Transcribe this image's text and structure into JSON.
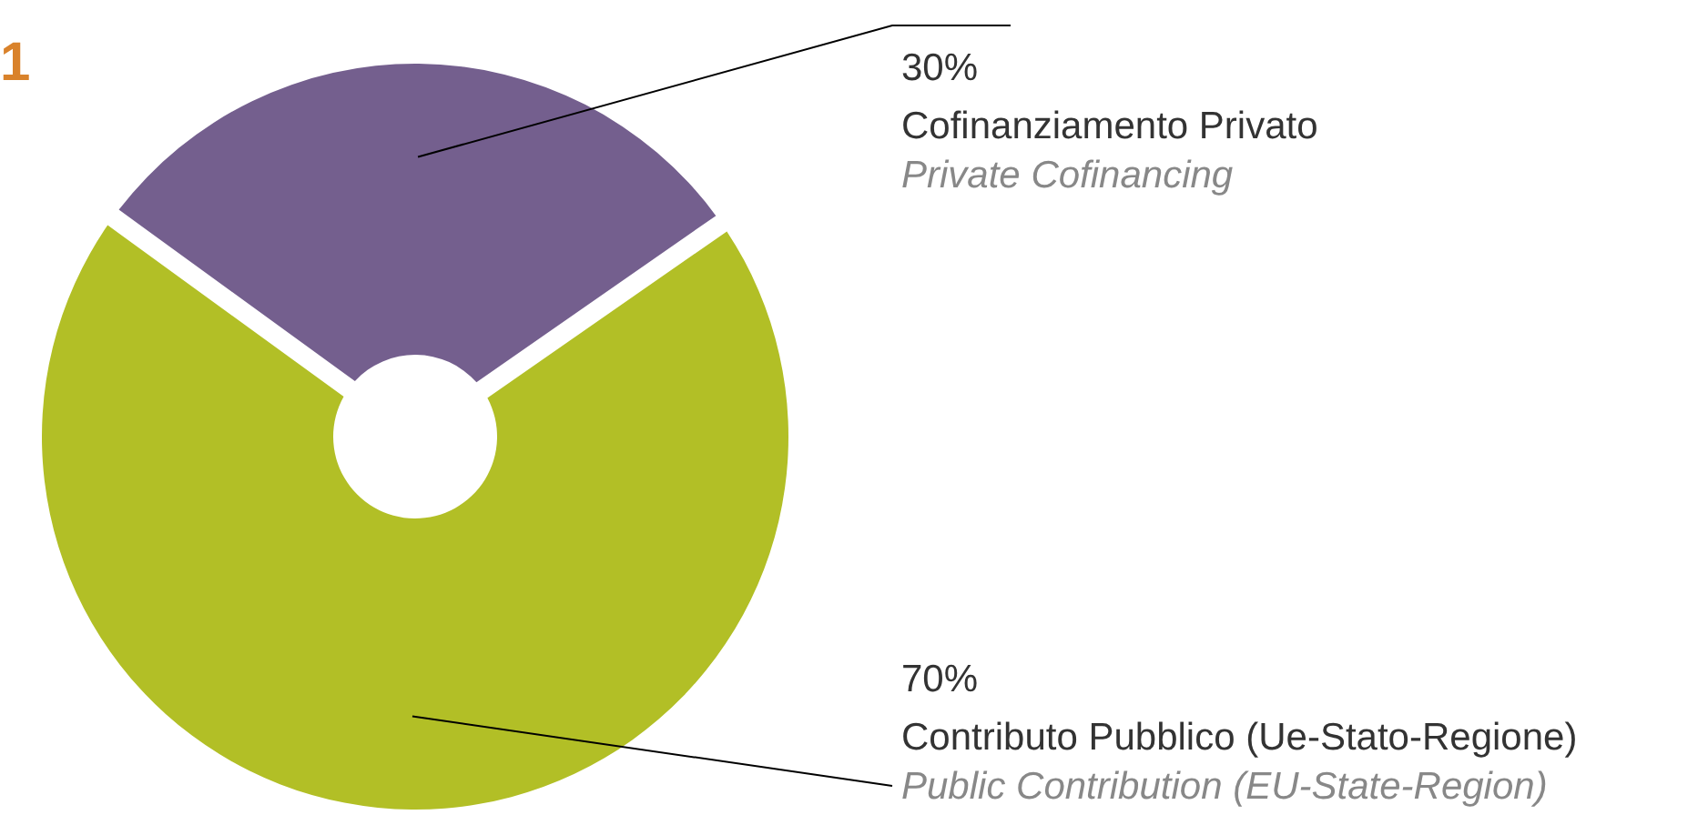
{
  "chart_data": {
    "type": "donut",
    "title": "1",
    "categories": [
      "Cofinanziamento Privato\nPrivate Cofinancing",
      "Contributo Pubblico (Ue-Stato-Regione)\nPublic Contribution (EU-State-Region)"
    ],
    "values": [
      30,
      70
    ],
    "colors": [
      "#745f8e",
      "#b2bf26"
    ],
    "value_labels": [
      "30%",
      "70%"
    ]
  }
}
